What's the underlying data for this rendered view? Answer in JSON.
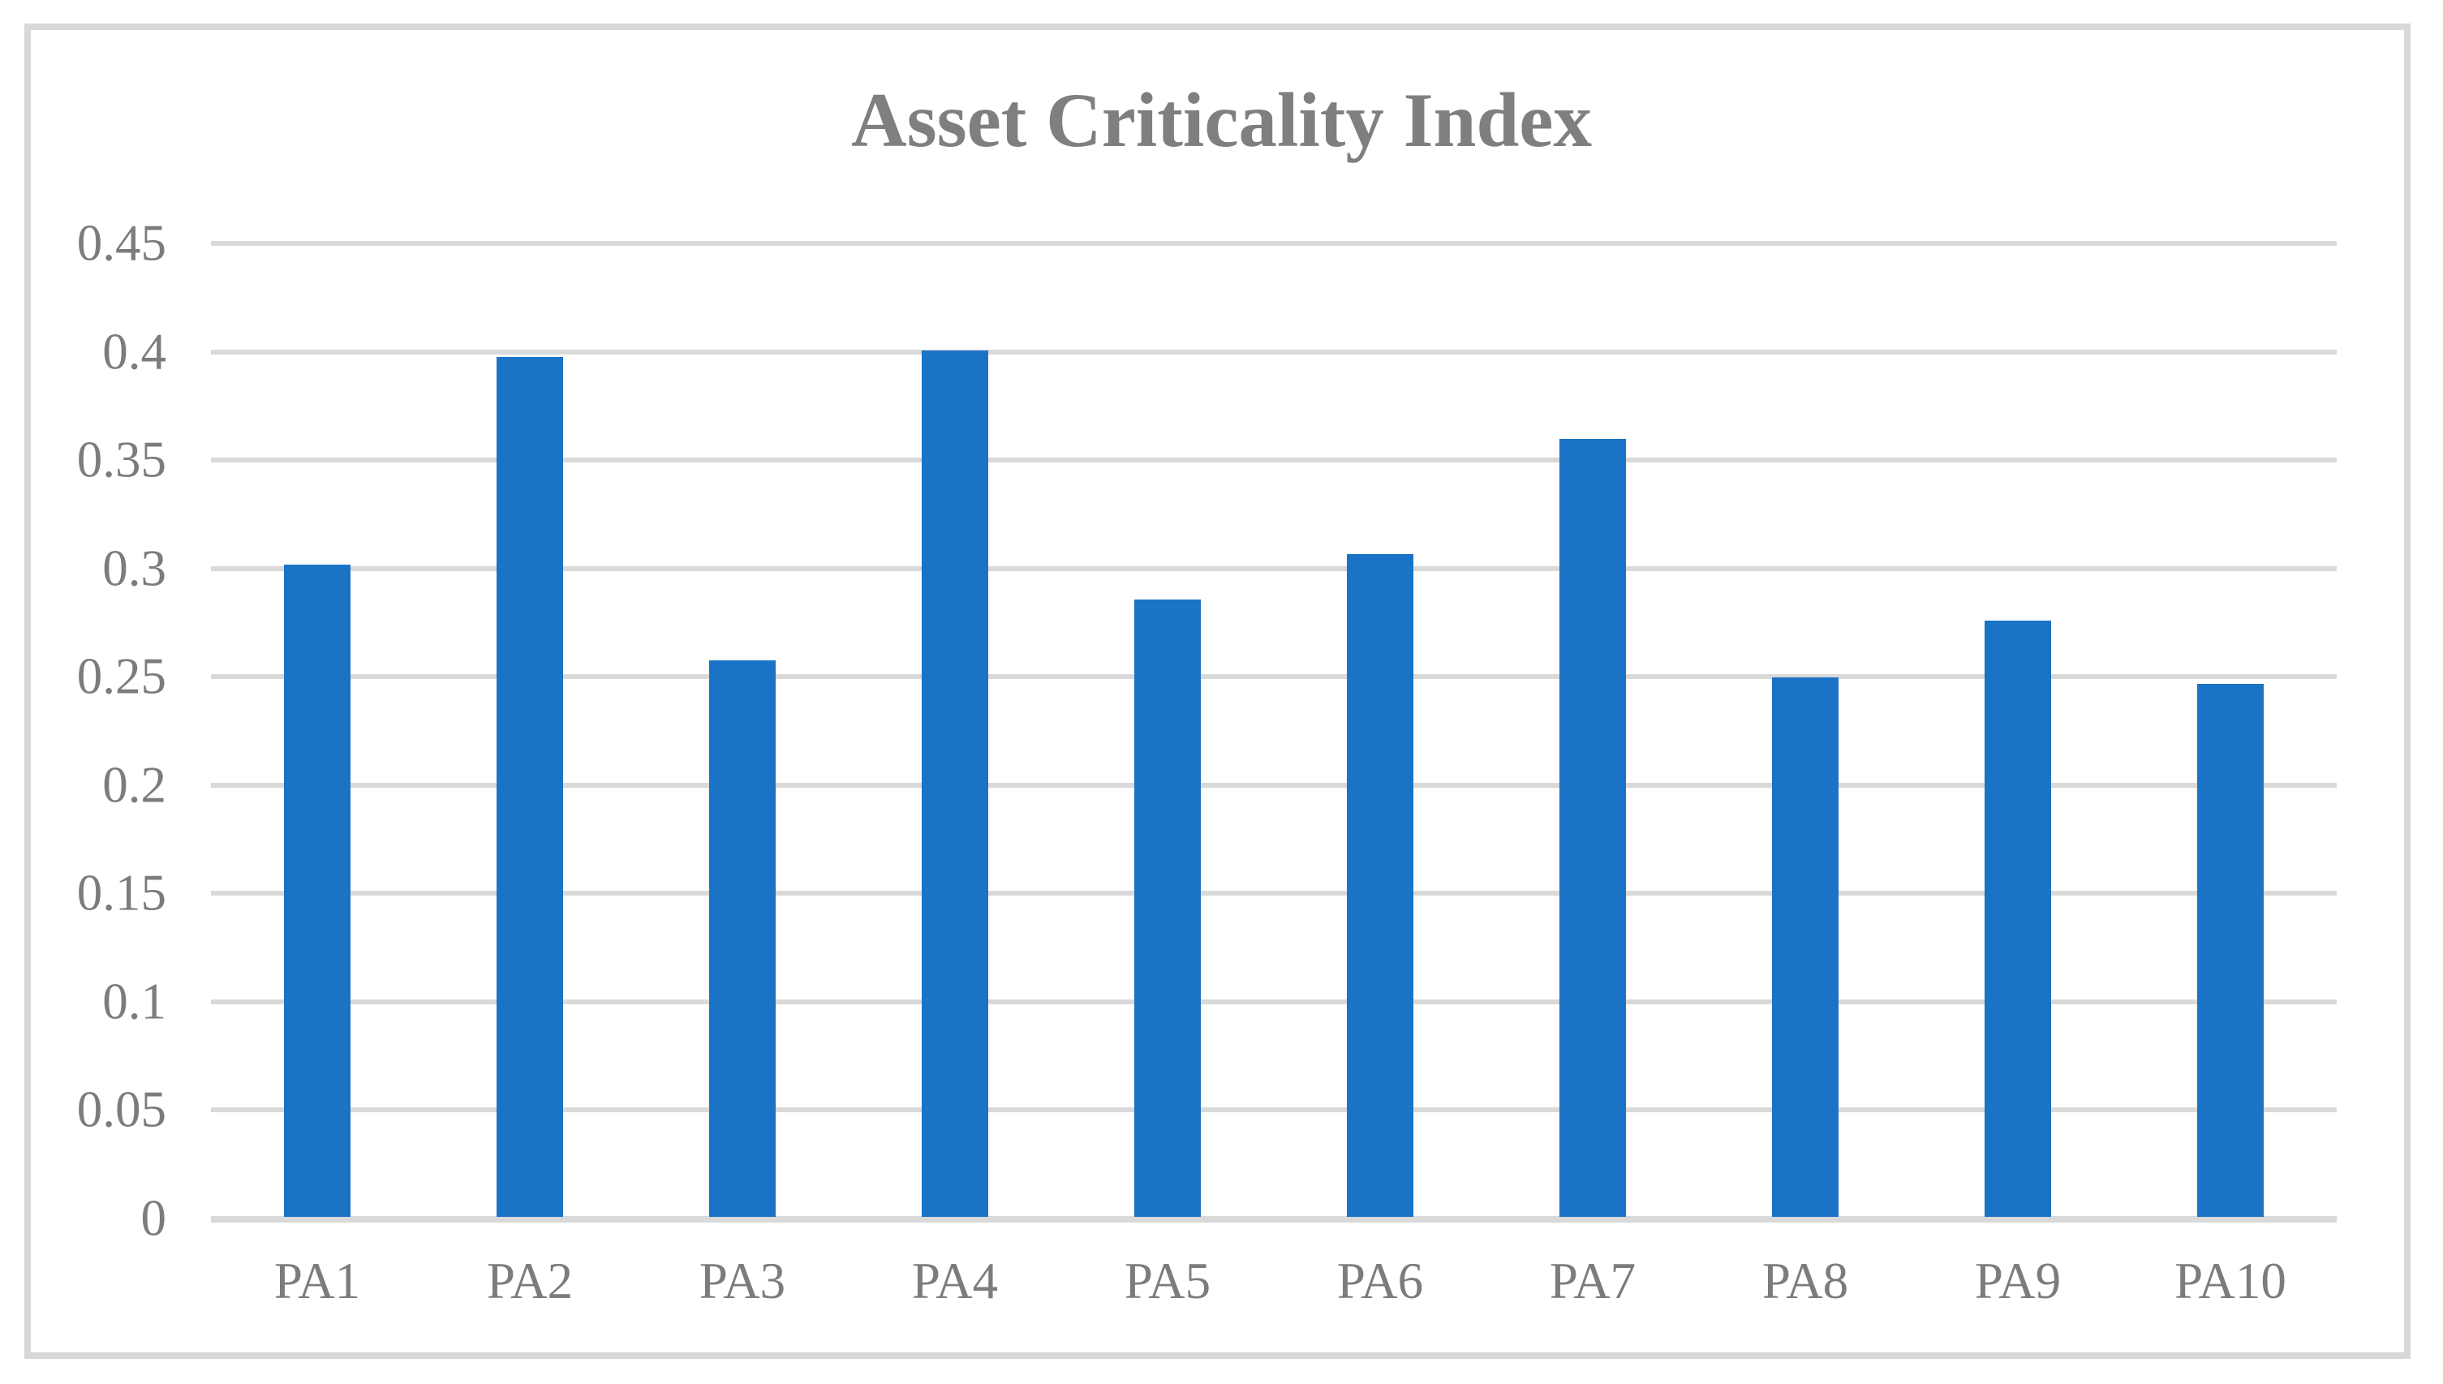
{
  "chart_data": {
    "type": "bar",
    "title": "Asset Criticality Index",
    "categories": [
      "PA1",
      "PA2",
      "PA3",
      "PA4",
      "PA5",
      "PA6",
      "PA7",
      "PA8",
      "PA9",
      "PA10"
    ],
    "values": [
      0.301,
      0.397,
      0.257,
      0.4,
      0.285,
      0.306,
      0.359,
      0.249,
      0.275,
      0.246
    ],
    "xlabel": "",
    "ylabel": "",
    "ylim": [
      0,
      0.45
    ],
    "ytick_step": 0.05,
    "ytick_labels": [
      "0",
      "0.05",
      "0.1",
      "0.15",
      "0.2",
      "0.25",
      "0.3",
      "0.35",
      "0.4",
      "0.45"
    ],
    "grid": "horizontal",
    "legend_position": "none",
    "colors": {
      "bar_fill": "#1B73C6",
      "gridline": "#D9D9D9",
      "axis_line": "#D9D9D9",
      "tick_text": "#7C7C7C",
      "title_text": "#7F7F7F",
      "frame_border": "#D8D8D8",
      "background": "#FFFFFF"
    }
  }
}
